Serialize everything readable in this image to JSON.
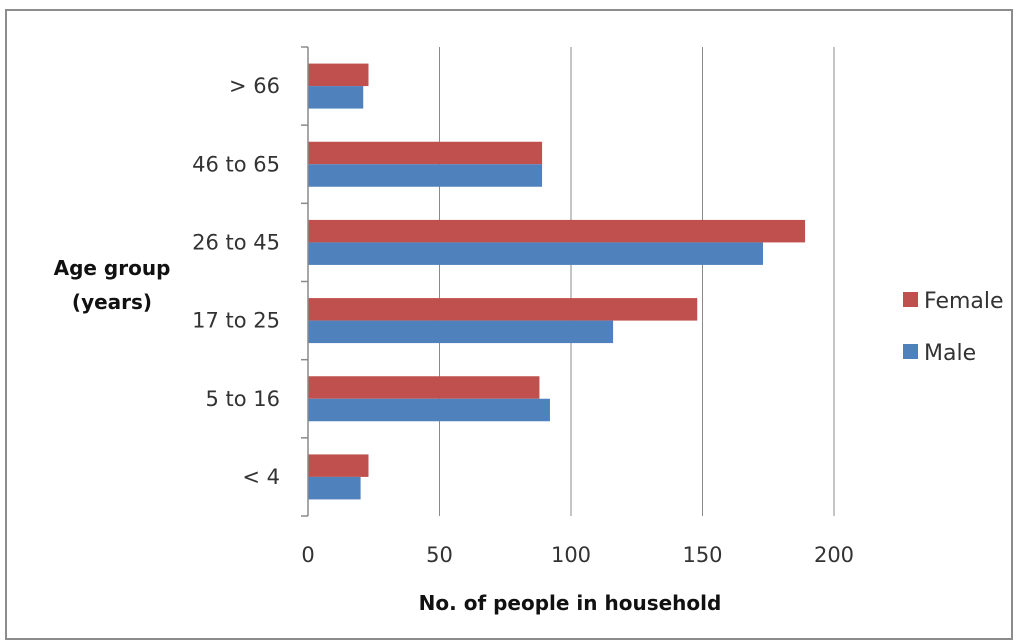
{
  "chart_data": {
    "type": "bar",
    "orientation": "horizontal",
    "categories": [
      "< 4",
      "5 to 16",
      "17 to 25",
      "26 to 45",
      "46 to 65",
      "> 66"
    ],
    "series": [
      {
        "name": "Male",
        "color": "#4f81bd",
        "values": [
          20,
          92,
          116,
          173,
          89,
          21
        ]
      },
      {
        "name": "Female",
        "color": "#c0504d",
        "values": [
          23,
          88,
          148,
          189,
          89,
          23
        ]
      }
    ],
    "x_ticks": [
      "0",
      "50",
      "100",
      "150",
      "200"
    ],
    "xlim": [
      0,
      200
    ],
    "xlabel": "No. of people in household",
    "ylabel_lines": [
      "Age group",
      "(years)"
    ],
    "grid": "vertical major gridlines",
    "legend": {
      "position": "right",
      "order": [
        "Female",
        "Male"
      ]
    }
  }
}
